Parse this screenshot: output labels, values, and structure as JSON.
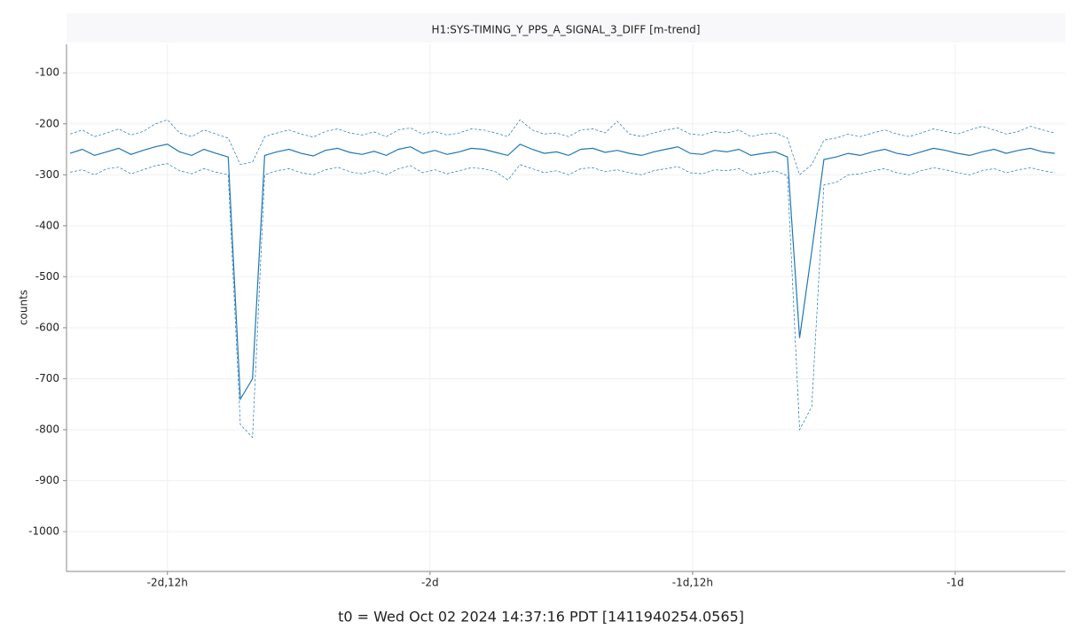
{
  "chart_data": {
    "type": "line",
    "title": "H1:SYS-TIMING_Y_PPS_A_SIGNAL_3_DIFF [m-trend]",
    "ylabel": "counts",
    "annotation": "t0 = Wed Oct 02 2024 14:37:16 PDT [1411940254.0565]",
    "xlim": [
      -232600,
      -68300
    ],
    "xticks": [
      {
        "value": -216000,
        "label": "-2d,12h"
      },
      {
        "value": -172800,
        "label": "-2d"
      },
      {
        "value": -129600,
        "label": "-1d,12h"
      },
      {
        "value": -86400,
        "label": "-1d"
      }
    ],
    "ylim": [
      -1078,
      -44
    ],
    "yticks": [
      -100,
      -200,
      -300,
      -400,
      -500,
      -600,
      -700,
      -800,
      -900,
      -1000
    ],
    "grid": true,
    "x": [
      -232000,
      -230000,
      -228000,
      -226000,
      -224000,
      -222000,
      -220000,
      -218000,
      -216000,
      -214000,
      -212000,
      -210000,
      -208000,
      -206000,
      -204000,
      -202000,
      -200000,
      -198000,
      -196000,
      -194000,
      -192000,
      -190000,
      -188000,
      -186000,
      -184000,
      -182000,
      -180000,
      -178000,
      -176000,
      -174000,
      -172000,
      -170000,
      -168000,
      -166000,
      -164000,
      -162000,
      -160000,
      -158000,
      -156000,
      -154000,
      -152000,
      -150000,
      -148000,
      -146000,
      -144000,
      -142000,
      -140000,
      -138000,
      -136000,
      -134000,
      -132000,
      -130000,
      -128000,
      -126000,
      -124000,
      -122000,
      -120000,
      -118000,
      -116000,
      -114000,
      -112000,
      -110000,
      -108000,
      -106000,
      -104000,
      -102000,
      -100000,
      -98000,
      -96000,
      -94000,
      -92000,
      -90000,
      -88000,
      -86000,
      -84000,
      -82000,
      -80000,
      -78000,
      -76000,
      -74000,
      -72000,
      -70000
    ],
    "series": [
      {
        "color": "#1f77b4",
        "style": "solid",
        "values": [
          -258,
          -250,
          -262,
          -255,
          -248,
          -260,
          -252,
          -245,
          -240,
          -255,
          -262,
          -250,
          -258,
          -265,
          -740,
          -700,
          -262,
          -255,
          -250,
          -258,
          -263,
          -252,
          -248,
          -256,
          -260,
          -254,
          -262,
          -250,
          -245,
          -258,
          -252,
          -260,
          -255,
          -248,
          -250,
          -256,
          -262,
          -240,
          -250,
          -258,
          -255,
          -262,
          -250,
          -248,
          -256,
          -252,
          -258,
          -262,
          -255,
          -250,
          -245,
          -258,
          -260,
          -252,
          -255,
          -250,
          -262,
          -258,
          -255,
          -265,
          -620,
          -450,
          -270,
          -265,
          -258,
          -262,
          -255,
          -250,
          -258,
          -262,
          -255,
          -248,
          -252,
          -258,
          -262,
          -255,
          -250,
          -258,
          -252,
          -248,
          -255,
          -258
        ]
      },
      {
        "color": "#1f77b4",
        "style": "dashed",
        "values": [
          -295,
          -290,
          -300,
          -288,
          -285,
          -298,
          -290,
          -282,
          -278,
          -292,
          -298,
          -288,
          -295,
          -300,
          -790,
          -815,
          -300,
          -292,
          -288,
          -296,
          -300,
          -290,
          -285,
          -294,
          -298,
          -292,
          -300,
          -288,
          -282,
          -296,
          -290,
          -298,
          -292,
          -286,
          -288,
          -294,
          -310,
          -280,
          -288,
          -296,
          -292,
          -300,
          -288,
          -286,
          -294,
          -290,
          -296,
          -300,
          -292,
          -288,
          -284,
          -296,
          -298,
          -290,
          -292,
          -288,
          -300,
          -296,
          -292,
          -302,
          -800,
          -755,
          -320,
          -315,
          -300,
          -298,
          -292,
          -288,
          -296,
          -300,
          -292,
          -286,
          -290,
          -296,
          -300,
          -292,
          -288,
          -296,
          -290,
          -286,
          -292,
          -296
        ]
      },
      {
        "color": "#1f77b4",
        "style": "dashed",
        "values": [
          -220,
          -212,
          -225,
          -218,
          -210,
          -222,
          -215,
          -200,
          -192,
          -218,
          -225,
          -212,
          -220,
          -228,
          -280,
          -275,
          -225,
          -218,
          -212,
          -220,
          -226,
          -215,
          -210,
          -218,
          -222,
          -216,
          -225,
          -212,
          -208,
          -220,
          -215,
          -222,
          -218,
          -210,
          -212,
          -218,
          -225,
          -192,
          -212,
          -220,
          -218,
          -225,
          -212,
          -210,
          -218,
          -195,
          -220,
          -225,
          -218,
          -212,
          -208,
          -220,
          -222,
          -215,
          -218,
          -212,
          -225,
          -220,
          -218,
          -228,
          -300,
          -280,
          -232,
          -228,
          -220,
          -225,
          -218,
          -212,
          -220,
          -225,
          -218,
          -210,
          -215,
          -220,
          -212,
          -205,
          -212,
          -220,
          -215,
          -205,
          -212,
          -218
        ]
      }
    ]
  }
}
